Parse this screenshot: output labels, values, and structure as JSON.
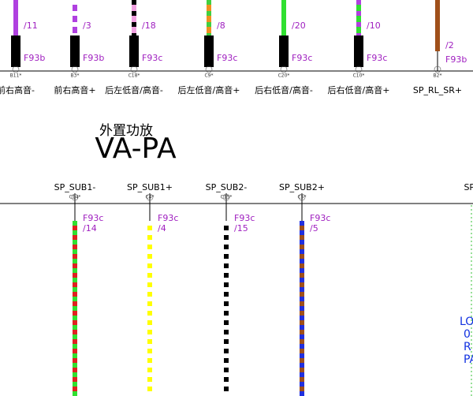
{
  "title": {
    "cn": "外置功放",
    "en": "VA-PA"
  },
  "top_connectors": [
    {
      "wire_no": "/11",
      "fuse": "F93b",
      "pin": "B11*",
      "label": "前右高音-"
    },
    {
      "wire_no": "/3",
      "fuse": "F93b",
      "pin": "B3*",
      "label": "前右高音+"
    },
    {
      "wire_no": "/18",
      "fuse": "F93c",
      "pin": "C18*",
      "label": "后左低音/高音-"
    },
    {
      "wire_no": "/8",
      "fuse": "F93c",
      "pin": "C9*",
      "label": "后左低音/高音+"
    },
    {
      "wire_no": "/20",
      "fuse": "F93c",
      "pin": "C20*",
      "label": "后右低音/高音-"
    },
    {
      "wire_no": "/10",
      "fuse": "F93c",
      "pin": "C10*",
      "label": "后右低音/高音+"
    },
    {
      "wire_no": "/2",
      "fuse": "F93b",
      "pin": "B2*",
      "label": "SP_RL_SR+"
    }
  ],
  "bottom_connectors": [
    {
      "name": "SP_SUB1-",
      "pin": "C14*",
      "fuse": "F93c",
      "wire_no": "/14"
    },
    {
      "name": "SP_SUB1+",
      "pin": "C4*",
      "fuse": "F93c",
      "wire_no": "/4"
    },
    {
      "name": "SP_SUB2-",
      "pin": "C15*",
      "fuse": "F93c",
      "wire_no": "/15"
    },
    {
      "name": "SP_SUB2+",
      "pin": "C5*",
      "fuse": "F93c",
      "wire_no": "/5"
    },
    {
      "name": "SP_"
    }
  ],
  "side_note": [
    "LO",
    "0",
    "R",
    "PA"
  ]
}
